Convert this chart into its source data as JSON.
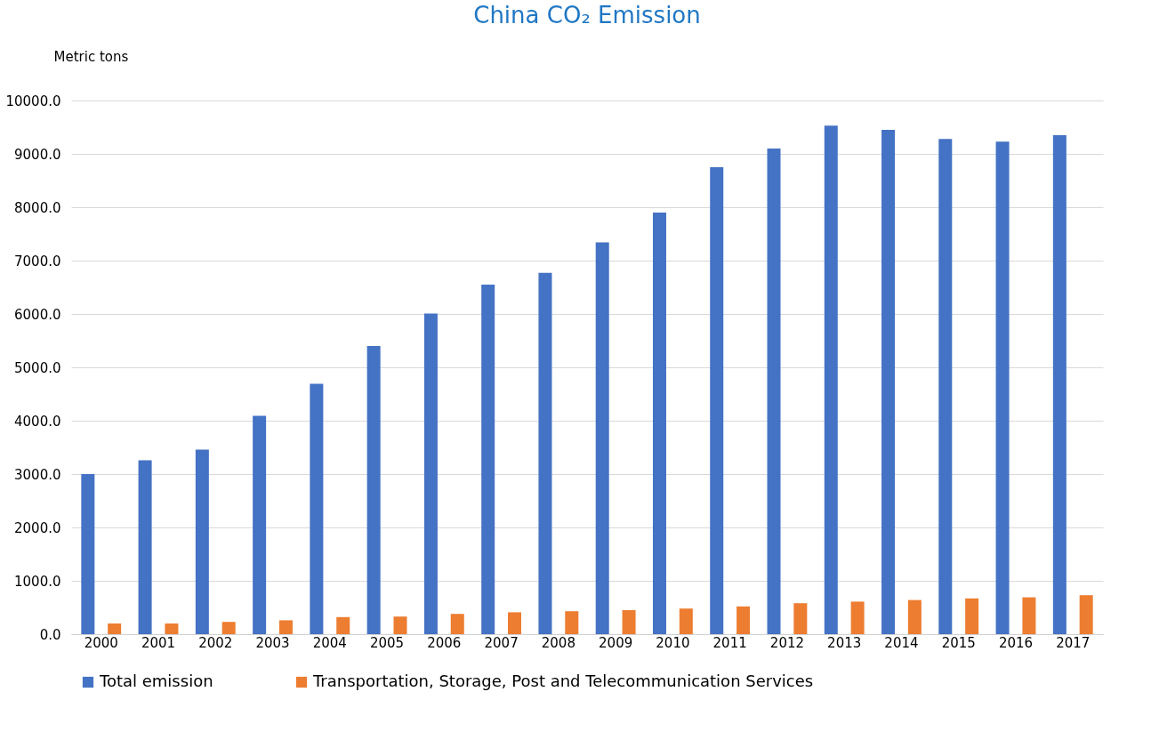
{
  "chart_data": {
    "type": "bar",
    "title": "China CO₂ Emission",
    "ylabel": "Metric tons",
    "categories": [
      "2000",
      "2001",
      "2002",
      "2003",
      "2004",
      "2005",
      "2006",
      "2007",
      "2008",
      "2009",
      "2010",
      "2011",
      "2012",
      "2013",
      "2014",
      "2015",
      "2016",
      "2017"
    ],
    "series": [
      {
        "name": "Total emission",
        "color": "#4472c4",
        "values": [
          3000,
          3260,
          3460,
          4090,
          4690,
          5400,
          6010,
          6550,
          6770,
          7340,
          7900,
          8750,
          9100,
          9530,
          9450,
          9280,
          9230,
          9350
        ]
      },
      {
        "name": "Transportation, Storage, Post and Telecommunication Services",
        "color": "#ed7d31",
        "values": [
          200,
          200,
          230,
          260,
          320,
          330,
          380,
          410,
          430,
          450,
          480,
          520,
          580,
          610,
          640,
          670,
          690,
          730
        ]
      }
    ],
    "ylim": [
      0,
      10000
    ],
    "yticks": [
      {
        "value": 0,
        "label": "0.0"
      },
      {
        "value": 1000,
        "label": "1000.0"
      },
      {
        "value": 2000,
        "label": "2000.0"
      },
      {
        "value": 3000,
        "label": "3000.0"
      },
      {
        "value": 4000,
        "label": "4000.0"
      },
      {
        "value": 5000,
        "label": "5000.0"
      },
      {
        "value": 6000,
        "label": "6000.0"
      },
      {
        "value": 7000,
        "label": "7000.0"
      },
      {
        "value": 8000,
        "label": "8000.0"
      },
      {
        "value": 9000,
        "label": "9000.0"
      },
      {
        "value": 10000,
        "label": "10000.0"
      }
    ],
    "grid": "y",
    "legend": "bottom"
  }
}
